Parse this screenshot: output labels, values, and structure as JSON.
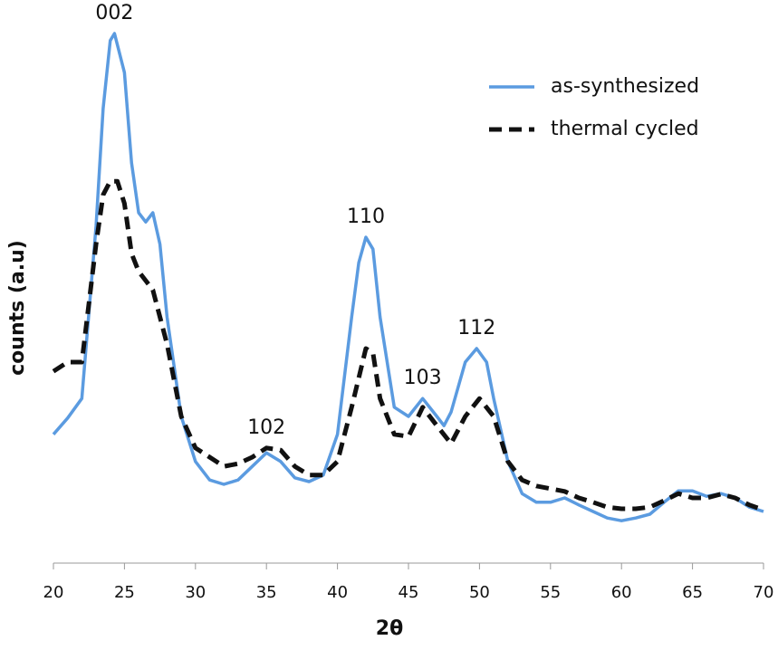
{
  "chart_data": {
    "type": "line",
    "x_label": "2θ",
    "y_label": "counts (a.u)",
    "xlim": [
      20,
      70
    ],
    "xticks": [
      20,
      25,
      30,
      35,
      40,
      45,
      50,
      55,
      60,
      65,
      70
    ],
    "ylim": [
      0,
      100
    ],
    "legend": "top-right",
    "series": [
      {
        "name": "as-synthesized",
        "color": "#5b9be0",
        "dash": false,
        "x": [
          20,
          21,
          22,
          23,
          23.5,
          24,
          24.3,
          25,
          25.5,
          26,
          26.5,
          27,
          27.5,
          28,
          29,
          30,
          31,
          32,
          33,
          34,
          35,
          36,
          37,
          38,
          39,
          40,
          41,
          41.5,
          42,
          42.5,
          43,
          44,
          45,
          46,
          47,
          47.5,
          48,
          49,
          49.8,
          50.5,
          51,
          52,
          53,
          54,
          55,
          56,
          57,
          58,
          59,
          60,
          61,
          62,
          63,
          64,
          65,
          66,
          67,
          68,
          69,
          70
        ],
        "values": [
          23.7,
          26.7,
          30.3,
          62,
          83.7,
          96.2,
          97.5,
          90.3,
          73.7,
          64.5,
          62.8,
          64.5,
          58.7,
          45.3,
          27,
          18.7,
          15.3,
          14.5,
          15.3,
          17.8,
          20.3,
          18.7,
          15.7,
          15,
          16.2,
          23.7,
          45.3,
          55.3,
          60,
          57.8,
          45.3,
          28.7,
          27,
          30.3,
          27,
          25.3,
          27.8,
          37,
          39.5,
          37,
          30.3,
          18.7,
          12.8,
          11.2,
          11.2,
          12,
          10.7,
          9.5,
          8.3,
          7.8,
          8.3,
          9,
          11.2,
          13.3,
          13.3,
          12.3,
          12.8,
          12,
          10.3,
          9.5
        ]
      },
      {
        "name": "thermal cycled",
        "color": "#111111",
        "dash": true,
        "x": [
          20,
          21,
          22,
          23,
          23.5,
          24,
          24.5,
          25,
          25.5,
          26,
          26.5,
          27,
          28,
          29,
          30,
          31,
          32,
          33,
          34,
          35,
          36,
          37,
          38,
          39,
          40,
          41,
          42,
          42.5,
          43,
          44,
          45,
          46,
          47,
          48,
          49,
          50,
          51,
          52,
          53,
          54,
          55,
          56,
          57,
          58,
          59,
          60,
          61,
          62,
          63,
          64,
          65,
          66,
          67,
          68,
          69,
          70
        ],
        "values": [
          35.3,
          37,
          37,
          58.7,
          67.8,
          70.3,
          70.3,
          66.2,
          57,
          53.7,
          52,
          50.3,
          40.3,
          27,
          21.2,
          19.5,
          17.8,
          18.3,
          19.5,
          21.2,
          20.8,
          17.8,
          16.2,
          16.2,
          18.7,
          28.7,
          39.5,
          38.7,
          30.3,
          23.7,
          23.3,
          28.7,
          25.3,
          22,
          27,
          30.3,
          27,
          18.7,
          15.3,
          14.2,
          13.7,
          13.2,
          12,
          11.2,
          10.3,
          10,
          10,
          10.3,
          11.5,
          12.8,
          12,
          12,
          12.7,
          12,
          10.7,
          9.8
        ]
      }
    ],
    "annotations": [
      {
        "text": "002",
        "x": 24.3
      },
      {
        "text": "102",
        "x": 35
      },
      {
        "text": "110",
        "x": 42
      },
      {
        "text": "103",
        "x": 46
      },
      {
        "text": "112",
        "x": 49.8
      }
    ]
  }
}
